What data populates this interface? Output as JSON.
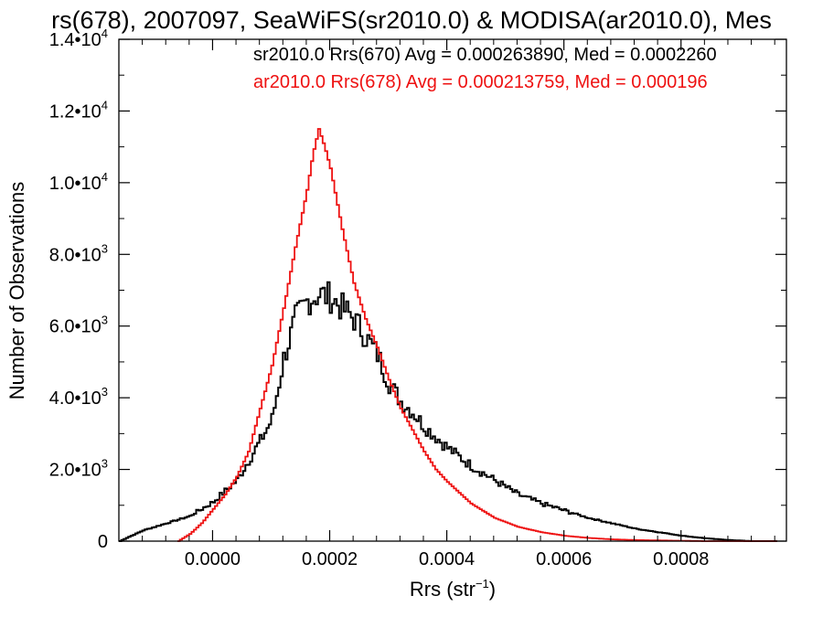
{
  "chart_data": {
    "type": "line",
    "title": "rs(678), 2007097, SeaWiFS(sr2010.0) & MODISA(ar2010.0), Mes",
    "xlabel_main": "Rrs (str",
    "xlabel_sup": "−1",
    "xlabel_close": ")",
    "ylabel": "Number of Observations",
    "xlim": [
      -0.00016,
      0.00098
    ],
    "ylim": [
      0,
      14000
    ],
    "x_ticks": [
      0.0,
      0.0002,
      0.0004,
      0.0006,
      0.0008
    ],
    "x_tick_labels": [
      "0.0000",
      "0.0002",
      "0.0004",
      "0.0006",
      "0.0008"
    ],
    "y_ticks": [
      {
        "value": 0,
        "mant": "0",
        "exp": ""
      },
      {
        "value": 2000,
        "mant": "2.0•10",
        "exp": "3"
      },
      {
        "value": 4000,
        "mant": "4.0•10",
        "exp": "3"
      },
      {
        "value": 6000,
        "mant": "6.0•10",
        "exp": "3"
      },
      {
        "value": 8000,
        "mant": "8.0•10",
        "exp": "3"
      },
      {
        "value": 10000,
        "mant": "1.0•10",
        "exp": "4"
      },
      {
        "value": 12000,
        "mant": "1.2•10",
        "exp": "4"
      },
      {
        "value": 14000,
        "mant": "1.4•10",
        "exp": "4"
      }
    ],
    "series": [
      {
        "name": "sr2010.0 Rrs(670) Avg = 0.000263890, Med = 0.0002260",
        "color": "#000000",
        "x": [
          -0.00016,
          -0.00012,
          -8e-05,
          -4e-05,
          0.0,
          4e-05,
          8e-05,
          0.0001,
          0.00012,
          0.00014,
          0.00016,
          0.00018,
          0.0002,
          0.00022,
          0.00024,
          0.00026,
          0.00028,
          0.0003,
          0.00032,
          0.00034,
          0.00036,
          0.00038,
          0.0004,
          0.00044,
          0.00048,
          0.00052,
          0.00056,
          0.0006,
          0.00064,
          0.00068,
          0.00072,
          0.00076,
          0.0008,
          0.00084,
          0.00088,
          0.00092,
          0.00096
        ],
        "y": [
          0,
          300,
          500,
          700,
          1100,
          1700,
          2800,
          3400,
          5100,
          6200,
          6700,
          6900,
          6800,
          6500,
          6200,
          5700,
          5200,
          4400,
          3900,
          3600,
          3200,
          2900,
          2600,
          2100,
          1700,
          1300,
          1050,
          850,
          650,
          500,
          350,
          250,
          150,
          80,
          30,
          0,
          0
        ]
      },
      {
        "name": "ar2010.0 Rrs(678) Avg = 0.000213759, Med = 0.000196",
        "color": "#ee1111",
        "x": [
          -6e-05,
          -4e-05,
          -2e-05,
          0.0,
          2e-05,
          4e-05,
          6e-05,
          8e-05,
          0.0001,
          0.00012,
          0.00014,
          0.00016,
          0.00017,
          0.00018,
          0.00019,
          0.0002,
          0.00022,
          0.00024,
          0.00026,
          0.00028,
          0.0003,
          0.00032,
          0.00034,
          0.00036,
          0.00038,
          0.0004,
          0.00044,
          0.00048,
          0.00052,
          0.00056,
          0.0006,
          0.00064,
          0.00068,
          0.00072,
          0.00076,
          0.0008,
          0.00084,
          0.00088,
          0.00092,
          0.00096
        ],
        "y": [
          0,
          200,
          500,
          900,
          1300,
          1800,
          2500,
          3700,
          4900,
          6500,
          8200,
          9800,
          10800,
          11500,
          11000,
          10400,
          8700,
          7200,
          6200,
          5400,
          4500,
          3700,
          3100,
          2500,
          2000,
          1650,
          1050,
          650,
          400,
          250,
          150,
          90,
          50,
          30,
          20,
          10,
          0,
          0,
          0,
          0
        ]
      }
    ],
    "legend_placement": "top-right",
    "grid": false
  }
}
